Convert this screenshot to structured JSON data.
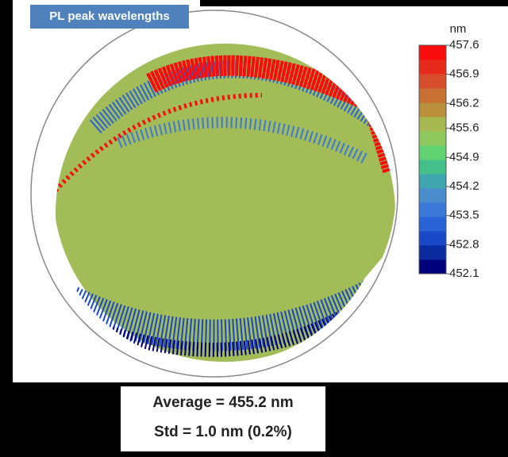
{
  "chart_data": {
    "type": "wafer-map",
    "title": "PL peak wavelengths",
    "colorbar": {
      "label": "nm",
      "lim": [
        452.1,
        457.6
      ],
      "ticks": [
        457.6,
        456.9,
        456.2,
        455.6,
        454.9,
        454.2,
        453.5,
        452.8,
        452.1
      ],
      "colors": [
        "#00007a",
        "#0a2aa0",
        "#1848c8",
        "#2a62d8",
        "#3c78d8",
        "#4a8ccc",
        "#3fa6b0",
        "#44c08a",
        "#60d270",
        "#90c860",
        "#a8b850",
        "#b8903c",
        "#c87034",
        "#d84e2c",
        "#e82a1c",
        "#f80c0c"
      ]
    },
    "annotations": [
      "Average = 455.2 nm",
      "Std = 1.0 nm (0.2%)"
    ]
  }
}
